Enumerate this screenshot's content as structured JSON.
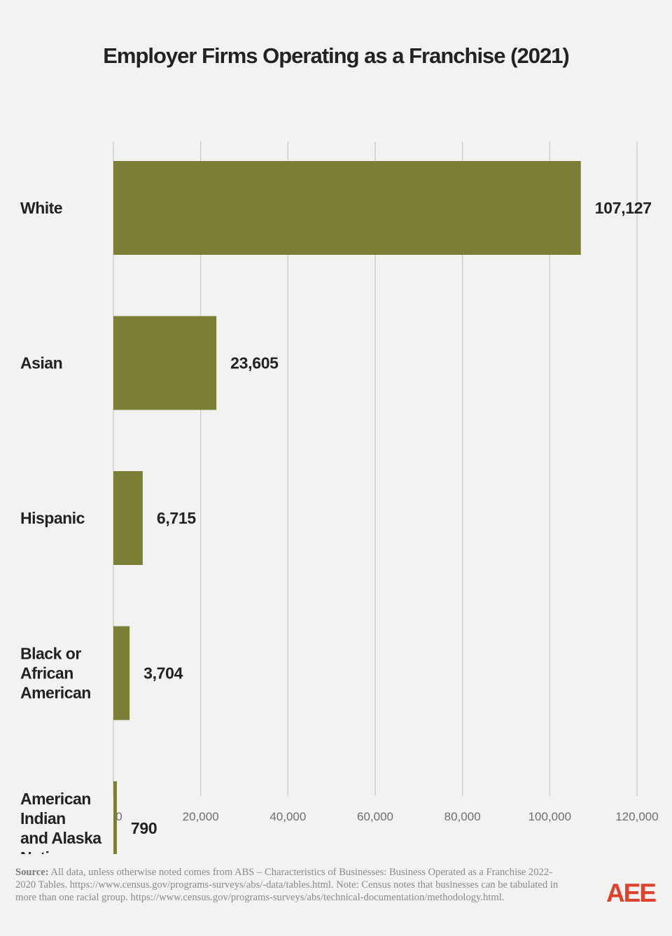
{
  "chart_data": {
    "type": "bar",
    "orientation": "horizontal",
    "title": "Employer Firms Operating as a Franchise (2021)",
    "categories": [
      [
        "White"
      ],
      [
        "Asian"
      ],
      [
        "Hispanic"
      ],
      [
        "Black or",
        "African",
        "American"
      ],
      [
        "American",
        "Indian",
        "and Alaska",
        "Native"
      ]
    ],
    "values": [
      107127,
      23605,
      6715,
      3704,
      790
    ],
    "value_labels": [
      "107,127",
      "23,605",
      "6,715",
      "3,704",
      "790"
    ],
    "xlim": [
      0,
      120000
    ],
    "xticks": [
      0,
      20000,
      40000,
      60000,
      80000,
      100000,
      120000
    ],
    "xtick_labels": [
      "0",
      "20,000",
      "40,000",
      "60,000",
      "80,000",
      "100,000",
      "120,000"
    ],
    "grid": "vertical",
    "bar_color": "#7b7f35",
    "grid_color": "#cfcfcf"
  },
  "source": {
    "label": "Source:",
    "text": "All data, unless otherwise noted comes from ABS – Characteristics of Businesses: Business Operated as a Franchise 2022-2020 Tables. https://www.census.gov/programs-surveys/abs/-data/tables.html. Note: Census notes that businesses can be tabulated in more than one racial group. https://www.census.gov/programs-surveys/abs/technical-documentation/methodology.html."
  },
  "logo": {
    "text": "AEE",
    "color": "#e0412d"
  }
}
